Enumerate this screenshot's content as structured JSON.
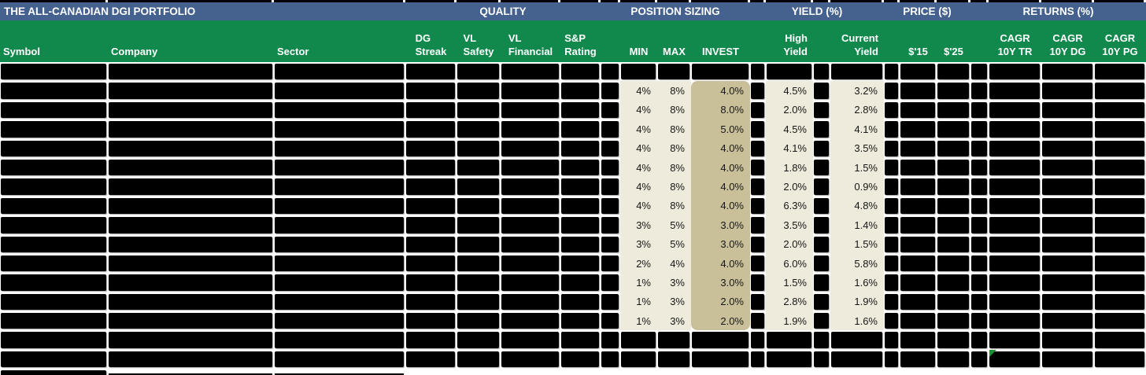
{
  "title_bar": {
    "title": "THE ALL-CANADIAN DGI PORTFOLIO",
    "group_headers": [
      {
        "label": "QUALITY"
      },
      {
        "label": "POSITION SIZING"
      },
      {
        "label": "YIELD (%)"
      },
      {
        "label": "PRICE ($)"
      },
      {
        "label": "RETURNS (%)"
      }
    ]
  },
  "column_headers": [
    {
      "id": "symbol",
      "lines": [
        "Symbol"
      ]
    },
    {
      "id": "company",
      "lines": [
        "Company"
      ]
    },
    {
      "id": "sector",
      "lines": [
        "Sector"
      ]
    },
    {
      "id": "dg_streak",
      "lines": [
        "DG",
        "Streak"
      ]
    },
    {
      "id": "vl_safety",
      "lines": [
        "VL",
        "Safety"
      ]
    },
    {
      "id": "vl_financial",
      "lines": [
        "VL",
        "Financial"
      ]
    },
    {
      "id": "sp_rating",
      "lines": [
        "S&P",
        "Rating"
      ]
    },
    {
      "id": "min",
      "lines": [
        "MIN"
      ]
    },
    {
      "id": "max",
      "lines": [
        "MAX"
      ]
    },
    {
      "id": "invest",
      "lines": [
        "INVEST"
      ]
    },
    {
      "id": "high_yield",
      "lines": [
        "High",
        "Yield"
      ]
    },
    {
      "id": "current_yield",
      "lines": [
        "Current",
        "Yield"
      ]
    },
    {
      "id": "price_2015",
      "lines": [
        "$'15"
      ]
    },
    {
      "id": "price_2025",
      "lines": [
        "$'25"
      ]
    },
    {
      "id": "cagr_10y_tr",
      "lines": [
        "CAGR",
        "10Y TR"
      ]
    },
    {
      "id": "cagr_10y_dg",
      "lines": [
        "CAGR",
        "10Y DG"
      ]
    },
    {
      "id": "cagr_10y_pg",
      "lines": [
        "CAGR",
        "10Y PG"
      ]
    }
  ],
  "rows": {
    "top_redacted_rows": 1,
    "data_rows": [
      {
        "min": "4%",
        "max": "8%",
        "invest": "4.0%",
        "high_yield": "4.5%",
        "current_yield": "3.2%"
      },
      {
        "min": "4%",
        "max": "8%",
        "invest": "8.0%",
        "high_yield": "2.0%",
        "current_yield": "2.8%"
      },
      {
        "min": "4%",
        "max": "8%",
        "invest": "5.0%",
        "high_yield": "4.5%",
        "current_yield": "4.1%"
      },
      {
        "min": "4%",
        "max": "8%",
        "invest": "4.0%",
        "high_yield": "4.1%",
        "current_yield": "3.5%"
      },
      {
        "min": "4%",
        "max": "8%",
        "invest": "4.0%",
        "high_yield": "1.8%",
        "current_yield": "1.5%"
      },
      {
        "min": "4%",
        "max": "8%",
        "invest": "4.0%",
        "high_yield": "2.0%",
        "current_yield": "0.9%"
      },
      {
        "min": "4%",
        "max": "8%",
        "invest": "4.0%",
        "high_yield": "6.3%",
        "current_yield": "4.8%"
      },
      {
        "min": "3%",
        "max": "5%",
        "invest": "3.0%",
        "high_yield": "3.5%",
        "current_yield": "1.4%"
      },
      {
        "min": "3%",
        "max": "5%",
        "invest": "3.0%",
        "high_yield": "2.0%",
        "current_yield": "1.5%"
      },
      {
        "min": "2%",
        "max": "4%",
        "invest": "4.0%",
        "high_yield": "6.0%",
        "current_yield": "5.8%"
      },
      {
        "min": "1%",
        "max": "3%",
        "invest": "3.0%",
        "high_yield": "1.5%",
        "current_yield": "1.6%"
      },
      {
        "min": "1%",
        "max": "3%",
        "invest": "2.0%",
        "high_yield": "2.8%",
        "current_yield": "1.9%"
      },
      {
        "min": "1%",
        "max": "3%",
        "invest": "2.0%",
        "high_yield": "1.9%",
        "current_yield": "1.6%"
      }
    ],
    "bottom_redacted_rows": 2,
    "partial_bottom_row": true
  },
  "indicators": {
    "cell_flag": {
      "location": "bottom redacted row, CAGR 10Y TR column",
      "color": "#1C9134"
    }
  },
  "colors": {
    "title_bar_blue": "#45618E",
    "header_green": "#12894C",
    "invest_column_tan": "#C9C099",
    "value_cell_cream": "#EEEBDC",
    "redaction_black": "#000000",
    "flag_green": "#1C9134"
  }
}
